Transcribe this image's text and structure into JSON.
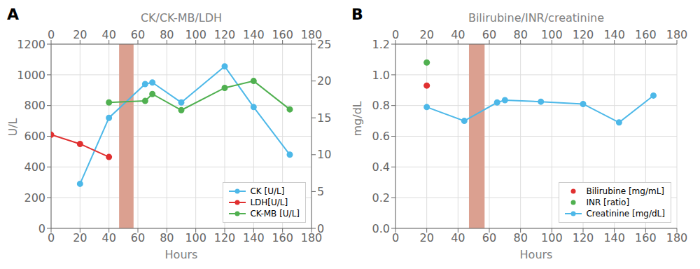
{
  "chart_data": [
    {
      "type": "line",
      "annotations": [
        "A"
      ],
      "title": "CK/CK-MB/LDH",
      "x_label": "Hours",
      "y_label": "U/L",
      "xlim": [
        0,
        180
      ],
      "xticks": [
        0,
        20,
        40,
        60,
        80,
        100,
        120,
        140,
        160,
        180
      ],
      "ylim": [
        0,
        1200
      ],
      "yticks": [
        0,
        200,
        400,
        600,
        800,
        1000,
        1200
      ],
      "y2lim": [
        0,
        25
      ],
      "y2ticks": [
        0,
        5,
        10,
        15,
        20,
        25
      ],
      "grid": true,
      "legend": "lower right",
      "shaded": {
        "x": [
          47,
          57
        ],
        "color": "#dba090"
      },
      "series": [
        {
          "name": "CK [U/L]",
          "color": "#4db8e8",
          "type": "line",
          "marker": "circle",
          "x": [
            20,
            40,
            65,
            70,
            90,
            120,
            140,
            165
          ],
          "values": [
            290,
            720,
            940,
            950,
            820,
            1055,
            790,
            480
          ]
        },
        {
          "name": "LDH[U/L]",
          "color": "#e03030",
          "type": "line",
          "marker": "circle",
          "x": [
            0,
            20,
            40
          ],
          "values": [
            610,
            550,
            465
          ]
        },
        {
          "name": "CK-MB [U/L]",
          "color": "#50b050",
          "type": "line",
          "marker": "circle",
          "x": [
            40,
            65,
            70,
            90,
            120,
            140,
            165
          ],
          "values": [
            820,
            830,
            875,
            770,
            915,
            960,
            775
          ]
        }
      ]
    },
    {
      "type": "line",
      "annotations": [
        "B"
      ],
      "title": "Bilirubine/INR/creatinine",
      "x_label": "Hours",
      "y_label": "mg/dL",
      "xlim": [
        0,
        180
      ],
      "xticks": [
        0,
        20,
        40,
        60,
        80,
        100,
        120,
        140,
        160,
        180
      ],
      "ylim": [
        0.0,
        1.2
      ],
      "yticks": [
        {
          "value": 0.0,
          "label": "0.0"
        },
        0.2,
        0.4,
        0.6,
        0.8,
        {
          "value": 1.0,
          "label": "1.0"
        },
        1.2
      ],
      "grid": true,
      "legend": "lower right",
      "shaded": {
        "x": [
          47,
          57
        ],
        "color": "#dba090"
      },
      "series": [
        {
          "name": "Bilirubine [mg/mL]",
          "color": "#e03030",
          "type": "scatter",
          "marker": "circle",
          "x": [
            20
          ],
          "values": [
            0.93
          ]
        },
        {
          "name": "INR [ratio]",
          "color": "#50b050",
          "type": "scatter",
          "marker": "circle",
          "x": [
            20
          ],
          "values": [
            1.08
          ]
        },
        {
          "name": "Creatinine [mg/dL]",
          "color": "#4db8e8",
          "type": "line",
          "marker": "circle",
          "x": [
            20,
            44,
            65,
            70,
            93,
            120,
            143,
            165
          ],
          "values": [
            0.79,
            0.7,
            0.82,
            0.835,
            0.825,
            0.81,
            0.69,
            0.865
          ]
        }
      ]
    }
  ]
}
